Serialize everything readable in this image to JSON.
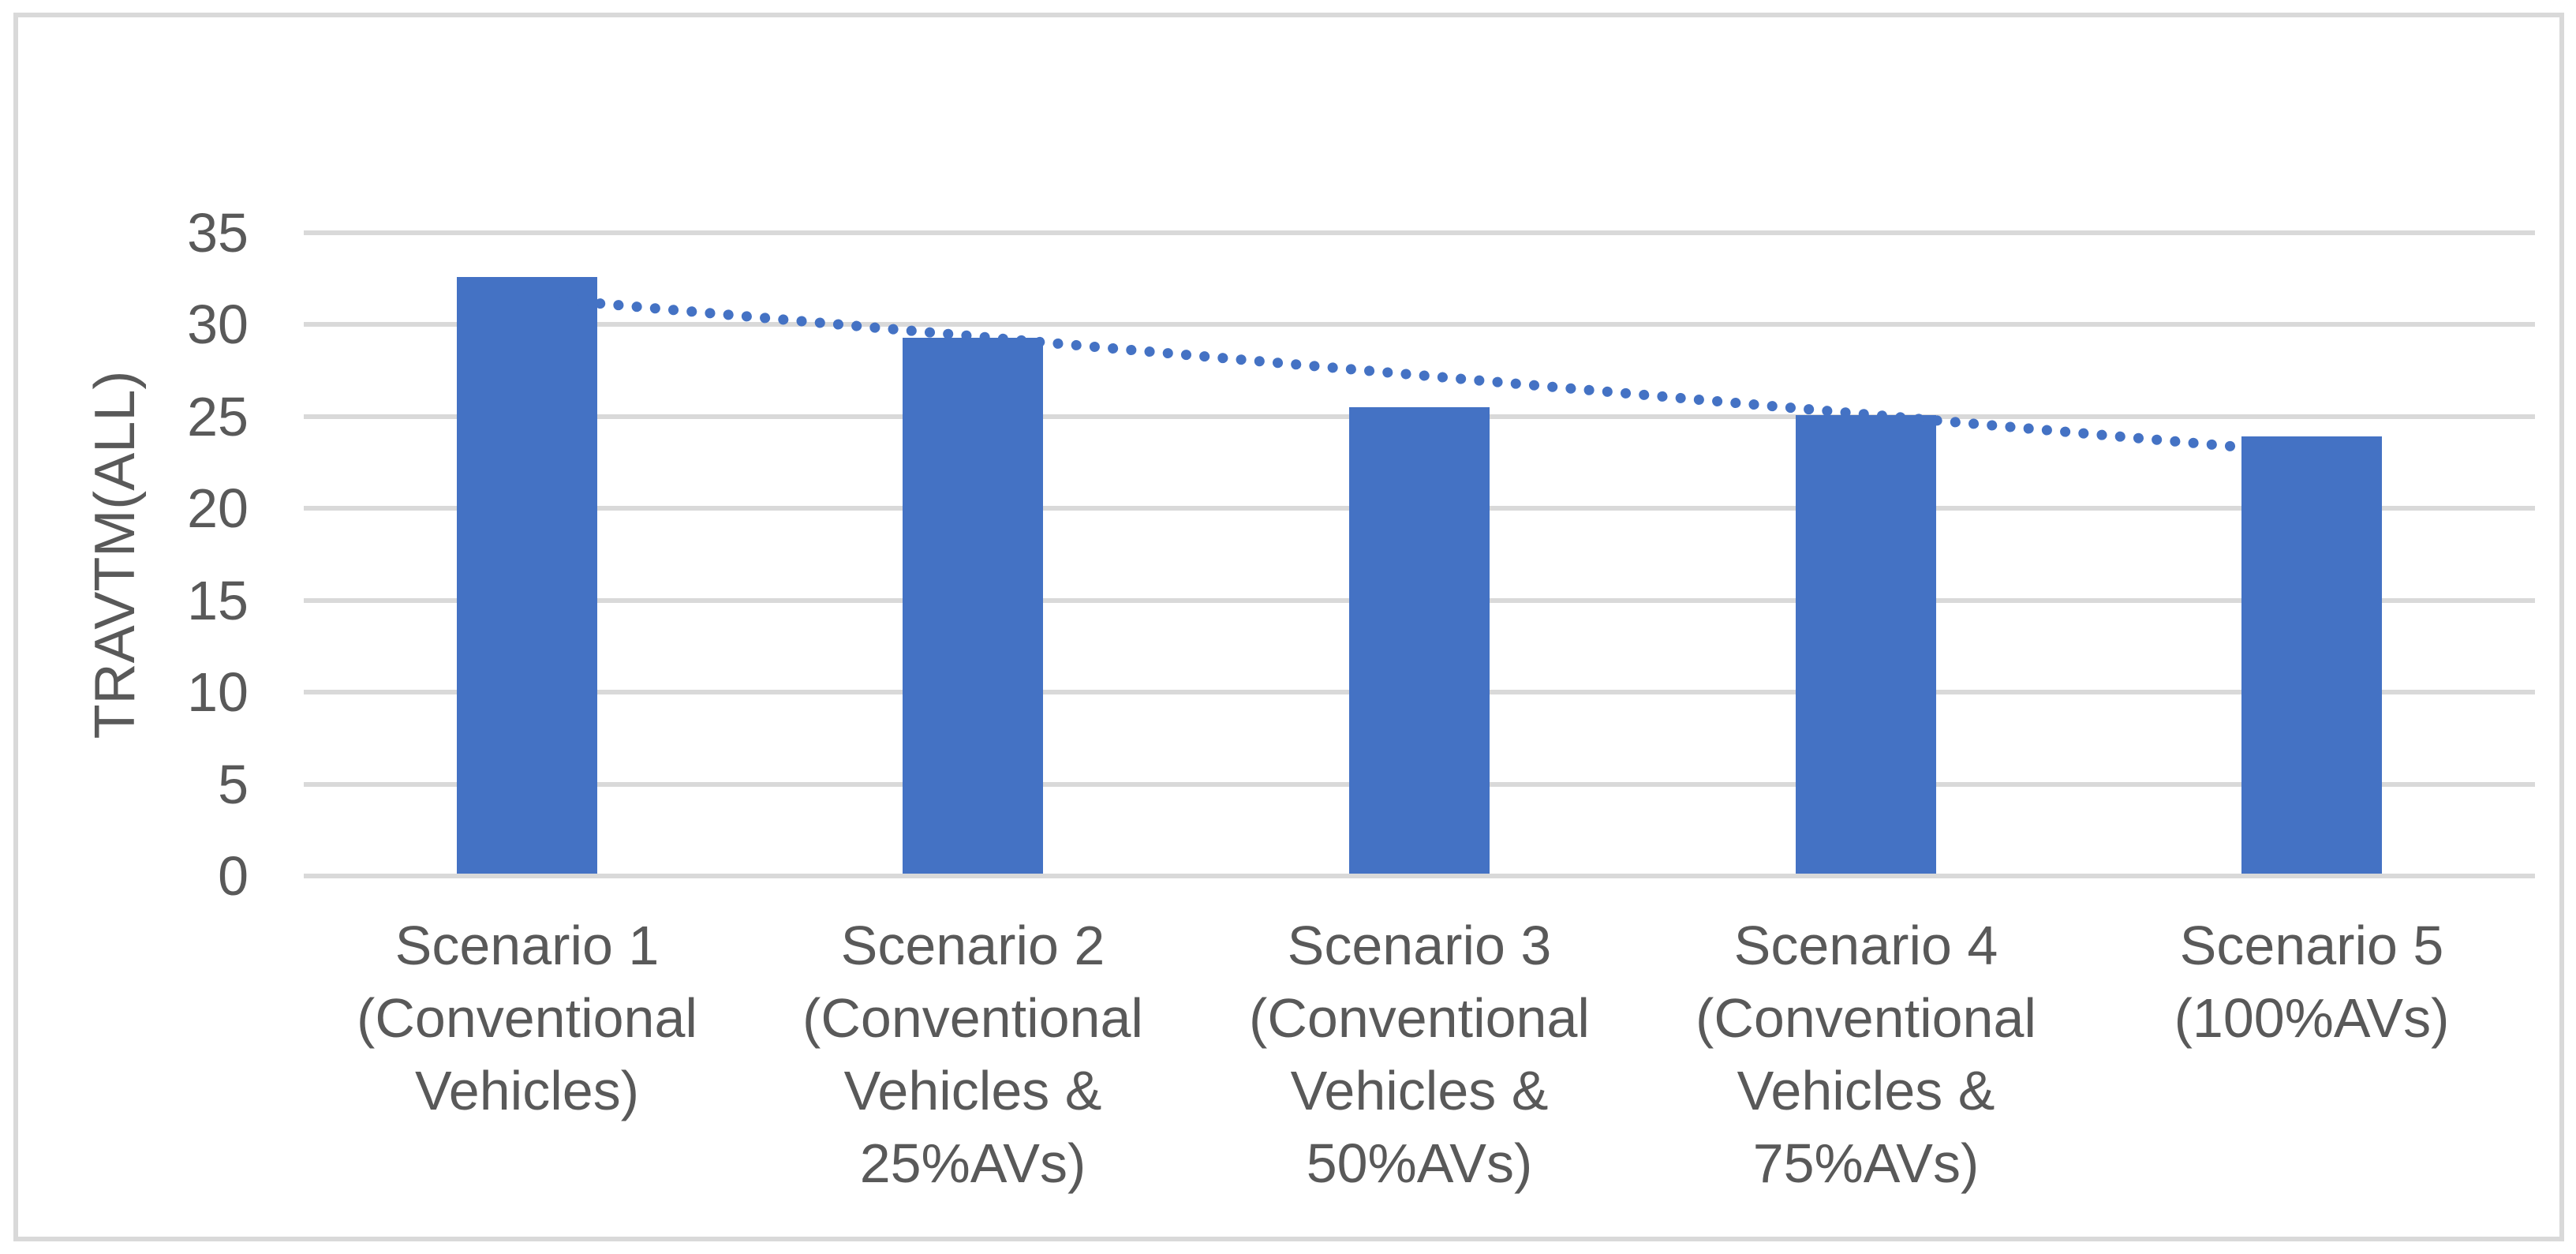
{
  "chart_data": {
    "type": "bar",
    "title": "",
    "xlabel": "",
    "ylabel": "TRAVTM(ALL)",
    "categories": [
      "Scenario 1\n(Conventional\nVehicles)",
      "Scenario 2\n(Conventional\nVehicles &\n25%AVs)",
      "Scenario 3\n(Conventional\nVehicles &\n50%AVs)",
      "Scenario 4\n(Conventional\nVehicles &\n75%AVs)",
      "Scenario 5\n(100%AVs)"
    ],
    "values": [
      32.6,
      29.3,
      25.5,
      25.1,
      23.9
    ],
    "yticks": [
      35,
      30,
      25,
      20,
      15,
      10,
      5,
      0
    ],
    "ylim": [
      0,
      35
    ],
    "grid": "horizontal-only",
    "legend": "none",
    "trendline": {
      "type": "linear",
      "style": "dotted",
      "start_value": 31.5,
      "end_value": 23.0
    },
    "colors": {
      "bar": "#4472C4",
      "trendline": "#4472C4",
      "gridline": "#D9D9D9",
      "axis_text": "#595959",
      "chart_border": "#D9D9D9",
      "background": "#FFFFFF"
    }
  }
}
